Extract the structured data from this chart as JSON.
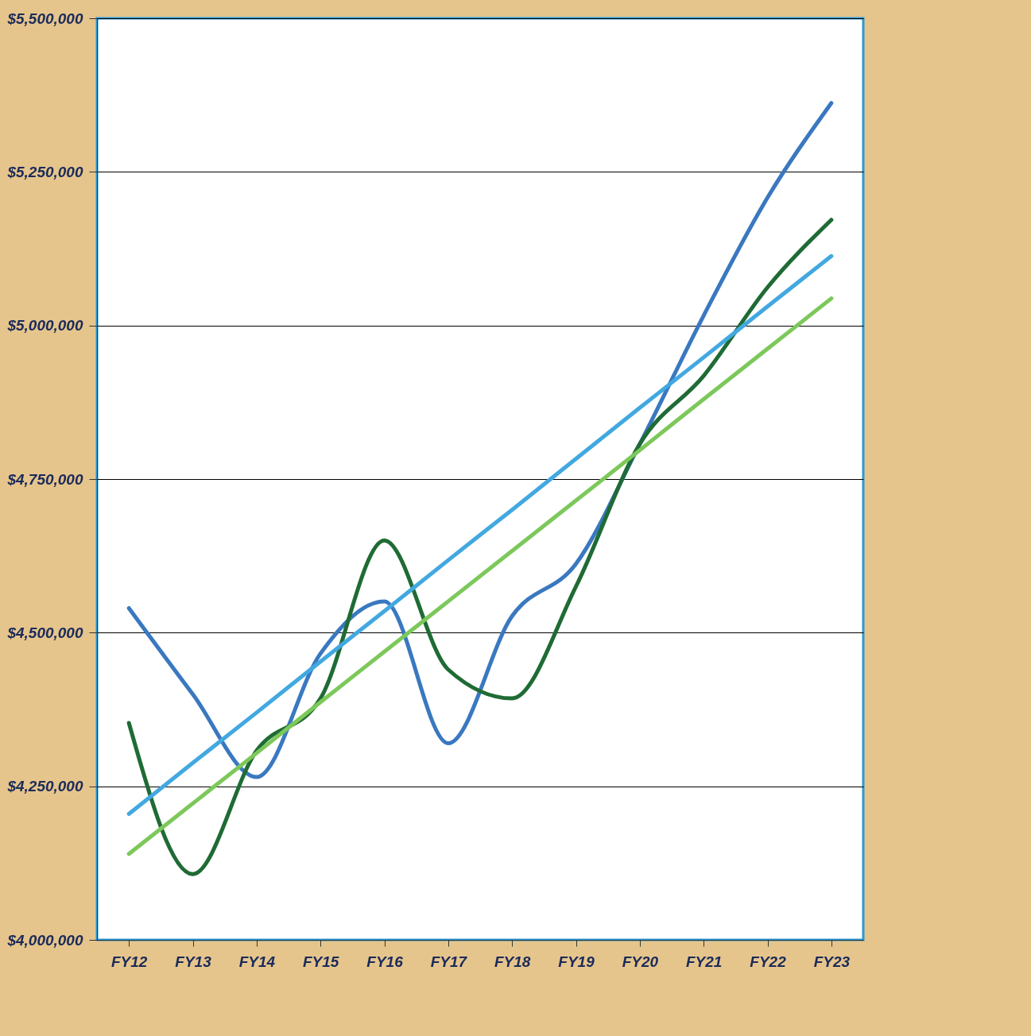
{
  "chart_data": {
    "type": "line",
    "categories": [
      "FY12",
      "FY13",
      "FY14",
      "FY15",
      "FY16",
      "FY17",
      "FY18",
      "FY19",
      "FY20",
      "FY21",
      "FY22",
      "FY23"
    ],
    "series": [
      {
        "color": "#3a78c0",
        "values": [
          4540000,
          4400000,
          4265000,
          4466000,
          4551000,
          4320000,
          4527000,
          4612000,
          4807000,
          5016000,
          5208000,
          5362000
        ]
      },
      {
        "color": "#1f6b35",
        "values": [
          4353000,
          4107000,
          4308000,
          4393000,
          4650000,
          4440000,
          4393000,
          4575000,
          4807000,
          4918000,
          5062000,
          5172000
        ]
      },
      {
        "color": "#42a8e0",
        "values": [
          4205000,
          4288000,
          4370000,
          4453000,
          4535000,
          4618000,
          4700000,
          4783000,
          4866000,
          4948000,
          5031000,
          5113000
        ]
      },
      {
        "color": "#7cc85a",
        "values": [
          4140000,
          4222000,
          4304000,
          4387000,
          4469000,
          4551000,
          4633000,
          4715000,
          4797000,
          4880000,
          4962000,
          5044000
        ]
      }
    ],
    "ylim": [
      4000000,
      5500000
    ],
    "yticks": [
      {
        "value": 4000000,
        "label": "$4,000,000"
      },
      {
        "value": 4250000,
        "label": "$4,250,000"
      },
      {
        "value": 4500000,
        "label": "$4,500,000"
      },
      {
        "value": 4750000,
        "label": "$4,750,000"
      },
      {
        "value": 5000000,
        "label": "$5,000,000"
      },
      {
        "value": 5250000,
        "label": "$5,250,000"
      },
      {
        "value": 5500000,
        "label": "$5,500,000"
      }
    ],
    "grid": "y",
    "legend": false,
    "line_style": "solid"
  }
}
